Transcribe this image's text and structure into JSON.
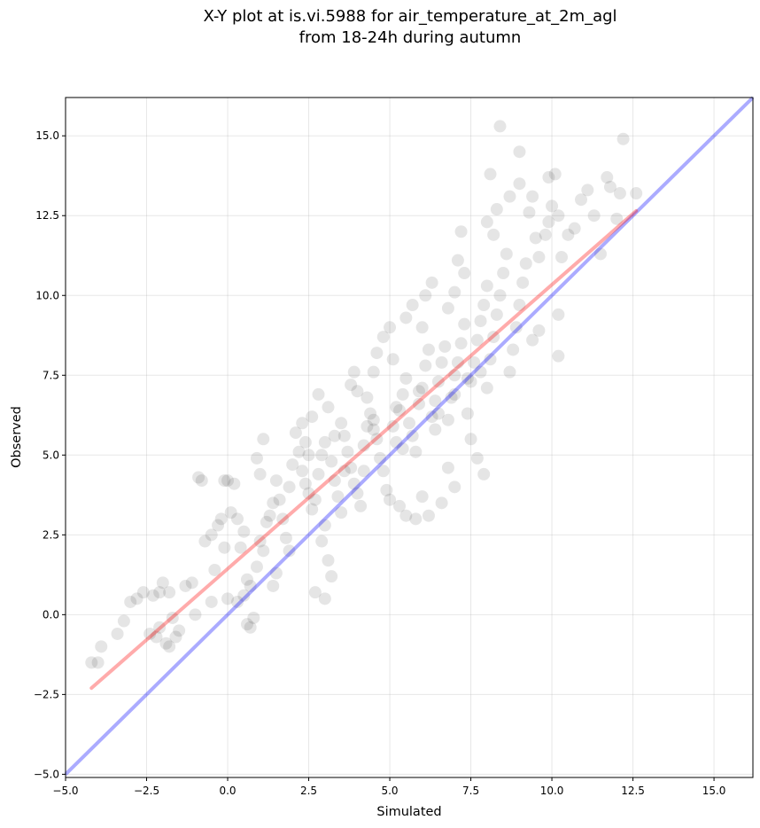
{
  "chart_data": {
    "type": "scatter",
    "title_lines": [
      "X-Y plot at is.vi.5988 for air_temperature_at_2m_agl",
      "from 18-24h during autumn"
    ],
    "xlabel": "Simulated",
    "ylabel": "Observed",
    "xlim": [
      -5.0,
      16.2
    ],
    "ylim": [
      -5.1,
      16.2
    ],
    "xticks": [
      -5.0,
      -2.5,
      0.0,
      2.5,
      5.0,
      7.5,
      10.0,
      12.5,
      15.0
    ],
    "xtick_labels": [
      "−5.0",
      "−2.5",
      "0.0",
      "2.5",
      "5.0",
      "7.5",
      "10.0",
      "12.5",
      "15.0"
    ],
    "yticks": [
      -5.0,
      -2.5,
      0.0,
      2.5,
      5.0,
      7.5,
      10.0,
      12.5,
      15.0
    ],
    "ytick_labels": [
      "−5.0",
      "−2.5",
      "0.0",
      "2.5",
      "5.0",
      "7.5",
      "10.0",
      "12.5",
      "15.0"
    ],
    "grid": true,
    "scatter_color": "#000000",
    "scatter_alpha": 0.1,
    "reference_line": {
      "color": "#0000ff",
      "alpha": 0.33,
      "x": [
        -5.0,
        16.2
      ],
      "y": [
        -5.0,
        16.2
      ]
    },
    "fit_line": {
      "color": "#ff0000",
      "alpha": 0.33,
      "x": [
        -4.2,
        12.6
      ],
      "y": [
        -2.3,
        12.65
      ]
    },
    "points": [
      [
        -4.2,
        -1.5
      ],
      [
        -4.0,
        -1.5
      ],
      [
        -3.9,
        -1.0
      ],
      [
        -3.4,
        -0.6
      ],
      [
        -3.2,
        -0.2
      ],
      [
        -3.0,
        0.4
      ],
      [
        -2.8,
        0.5
      ],
      [
        -2.6,
        0.7
      ],
      [
        -2.3,
        0.6
      ],
      [
        -2.1,
        0.7
      ],
      [
        -2.0,
        1.0
      ],
      [
        -1.8,
        0.7
      ],
      [
        -2.2,
        -0.7
      ],
      [
        -2.1,
        -0.4
      ],
      [
        -1.9,
        -0.9
      ],
      [
        -1.8,
        -1.0
      ],
      [
        -1.6,
        -0.7
      ],
      [
        -1.5,
        -0.5
      ],
      [
        -2.4,
        -0.6
      ],
      [
        -1.7,
        -0.1
      ],
      [
        -1.3,
        0.9
      ],
      [
        -1.1,
        1.0
      ],
      [
        -0.9,
        4.3
      ],
      [
        -0.8,
        4.2
      ],
      [
        -0.7,
        2.3
      ],
      [
        -0.5,
        2.5
      ],
      [
        -0.4,
        1.4
      ],
      [
        -0.3,
        2.8
      ],
      [
        -0.2,
        3.0
      ],
      [
        -0.1,
        2.1
      ],
      [
        0.0,
        4.2
      ],
      [
        0.2,
        4.1
      ],
      [
        -0.1,
        4.2
      ],
      [
        0.1,
        3.2
      ],
      [
        0.3,
        3.0
      ],
      [
        0.5,
        2.6
      ],
      [
        0.4,
        2.1
      ],
      [
        0.6,
        1.1
      ],
      [
        0.7,
        0.9
      ],
      [
        0.3,
        0.4
      ],
      [
        0.5,
        0.6
      ],
      [
        0.8,
        -0.1
      ],
      [
        0.6,
        -0.3
      ],
      [
        0.7,
        -0.4
      ],
      [
        0.9,
        1.5
      ],
      [
        1.0,
        2.3
      ],
      [
        1.1,
        2.0
      ],
      [
        1.2,
        2.9
      ],
      [
        1.3,
        3.1
      ],
      [
        1.4,
        3.5
      ],
      [
        1.0,
        4.4
      ],
      [
        0.9,
        4.9
      ],
      [
        1.1,
        5.5
      ],
      [
        1.5,
        4.2
      ],
      [
        1.6,
        3.6
      ],
      [
        1.7,
        3.0
      ],
      [
        1.8,
        2.4
      ],
      [
        1.9,
        2.0
      ],
      [
        1.5,
        1.3
      ],
      [
        1.4,
        0.9
      ],
      [
        2.0,
        4.7
      ],
      [
        2.2,
        5.1
      ],
      [
        2.1,
        5.7
      ],
      [
        2.3,
        6.0
      ],
      [
        2.4,
        4.1
      ],
      [
        2.5,
        3.8
      ],
      [
        2.6,
        3.3
      ],
      [
        2.7,
        3.6
      ],
      [
        2.8,
        4.4
      ],
      [
        2.9,
        5.0
      ],
      [
        3.0,
        5.4
      ],
      [
        2.6,
        6.2
      ],
      [
        2.8,
        6.9
      ],
      [
        3.1,
        6.5
      ],
      [
        3.2,
        4.8
      ],
      [
        3.3,
        4.2
      ],
      [
        3.4,
        3.7
      ],
      [
        3.5,
        3.2
      ],
      [
        3.0,
        2.8
      ],
      [
        2.9,
        2.3
      ],
      [
        3.1,
        1.7
      ],
      [
        3.2,
        1.2
      ],
      [
        3.0,
        0.5
      ],
      [
        2.7,
        0.7
      ],
      [
        3.6,
        5.6
      ],
      [
        3.7,
        5.1
      ],
      [
        3.8,
        4.6
      ],
      [
        3.9,
        4.1
      ],
      [
        4.0,
        3.8
      ],
      [
        4.1,
        3.4
      ],
      [
        4.2,
        5.3
      ],
      [
        4.3,
        5.9
      ],
      [
        4.4,
        6.3
      ],
      [
        4.0,
        7.0
      ],
      [
        3.9,
        7.6
      ],
      [
        3.8,
        7.2
      ],
      [
        4.5,
        6.1
      ],
      [
        4.6,
        5.5
      ],
      [
        4.7,
        4.9
      ],
      [
        4.8,
        4.5
      ],
      [
        4.9,
        3.9
      ],
      [
        5.0,
        3.6
      ],
      [
        4.5,
        7.6
      ],
      [
        4.6,
        8.2
      ],
      [
        4.8,
        8.7
      ],
      [
        5.0,
        9.0
      ],
      [
        5.1,
        5.9
      ],
      [
        5.2,
        5.4
      ],
      [
        5.3,
        6.4
      ],
      [
        5.4,
        6.9
      ],
      [
        5.5,
        7.4
      ],
      [
        5.6,
        6.0
      ],
      [
        5.7,
        5.6
      ],
      [
        5.8,
        5.1
      ],
      [
        5.9,
        6.6
      ],
      [
        6.0,
        7.1
      ],
      [
        6.1,
        7.8
      ],
      [
        6.2,
        8.3
      ],
      [
        5.5,
        9.3
      ],
      [
        5.7,
        9.7
      ],
      [
        6.0,
        9.0
      ],
      [
        6.1,
        10.0
      ],
      [
        6.3,
        10.4
      ],
      [
        5.3,
        3.4
      ],
      [
        5.5,
        3.1
      ],
      [
        5.8,
        3.0
      ],
      [
        6.2,
        3.1
      ],
      [
        6.0,
        3.7
      ],
      [
        6.3,
        6.2
      ],
      [
        6.4,
        6.7
      ],
      [
        6.5,
        7.3
      ],
      [
        6.6,
        7.9
      ],
      [
        6.7,
        8.4
      ],
      [
        6.8,
        6.1
      ],
      [
        6.9,
        6.8
      ],
      [
        7.0,
        7.5
      ],
      [
        7.1,
        7.9
      ],
      [
        7.2,
        8.5
      ],
      [
        7.3,
        9.1
      ],
      [
        6.8,
        9.6
      ],
      [
        7.0,
        10.1
      ],
      [
        7.3,
        10.7
      ],
      [
        7.1,
        11.1
      ],
      [
        7.2,
        12.0
      ],
      [
        7.5,
        7.3
      ],
      [
        7.6,
        7.9
      ],
      [
        7.7,
        8.6
      ],
      [
        7.8,
        9.2
      ],
      [
        7.9,
        9.7
      ],
      [
        8.0,
        10.3
      ],
      [
        7.4,
        6.3
      ],
      [
        7.5,
        5.5
      ],
      [
        7.7,
        4.9
      ],
      [
        7.9,
        4.4
      ],
      [
        6.8,
        4.6
      ],
      [
        7.0,
        4.0
      ],
      [
        6.6,
        3.5
      ],
      [
        8.1,
        8.0
      ],
      [
        8.2,
        8.7
      ],
      [
        8.3,
        9.4
      ],
      [
        8.4,
        10.0
      ],
      [
        8.5,
        10.7
      ],
      [
        8.6,
        11.3
      ],
      [
        8.2,
        11.9
      ],
      [
        8.0,
        12.3
      ],
      [
        8.3,
        12.7
      ],
      [
        8.1,
        13.8
      ],
      [
        8.7,
        7.6
      ],
      [
        8.8,
        8.3
      ],
      [
        8.9,
        9.0
      ],
      [
        9.0,
        9.7
      ],
      [
        9.1,
        10.4
      ],
      [
        9.2,
        11.0
      ],
      [
        8.7,
        13.1
      ],
      [
        9.0,
        13.5
      ],
      [
        9.3,
        12.6
      ],
      [
        9.4,
        13.1
      ],
      [
        8.4,
        15.3
      ],
      [
        9.0,
        14.5
      ],
      [
        9.5,
        11.8
      ],
      [
        9.6,
        11.2
      ],
      [
        9.4,
        8.6
      ],
      [
        9.6,
        8.9
      ],
      [
        9.8,
        11.9
      ],
      [
        9.9,
        12.3
      ],
      [
        10.0,
        12.8
      ],
      [
        10.2,
        12.5
      ],
      [
        10.1,
        13.8
      ],
      [
        9.9,
        13.7
      ],
      [
        10.3,
        11.2
      ],
      [
        10.2,
        9.4
      ],
      [
        10.2,
        8.1
      ],
      [
        10.5,
        11.9
      ],
      [
        10.7,
        12.1
      ],
      [
        10.9,
        13.0
      ],
      [
        11.1,
        13.3
      ],
      [
        11.3,
        12.5
      ],
      [
        11.5,
        11.3
      ],
      [
        11.7,
        13.7
      ],
      [
        11.8,
        13.4
      ],
      [
        12.1,
        13.2
      ],
      [
        12.2,
        14.9
      ],
      [
        12.0,
        12.4
      ],
      [
        12.6,
        13.2
      ],
      [
        -1.0,
        0.0
      ],
      [
        -0.5,
        0.4
      ],
      [
        0.0,
        0.5
      ],
      [
        1.9,
        4.0
      ],
      [
        2.3,
        4.5
      ],
      [
        2.5,
        5.0
      ],
      [
        3.5,
        6.0
      ],
      [
        4.2,
        4.5
      ],
      [
        4.5,
        5.8
      ],
      [
        5.2,
        6.5
      ],
      [
        5.4,
        5.2
      ],
      [
        5.9,
        7.0
      ],
      [
        6.4,
        5.8
      ],
      [
        6.5,
        6.3
      ],
      [
        7.0,
        6.9
      ],
      [
        7.4,
        7.4
      ],
      [
        7.8,
        7.6
      ],
      [
        8.0,
        7.1
      ],
      [
        5.1,
        8.0
      ],
      [
        4.3,
        6.8
      ],
      [
        3.6,
        4.5
      ],
      [
        3.3,
        5.6
      ],
      [
        2.4,
        5.4
      ]
    ]
  }
}
